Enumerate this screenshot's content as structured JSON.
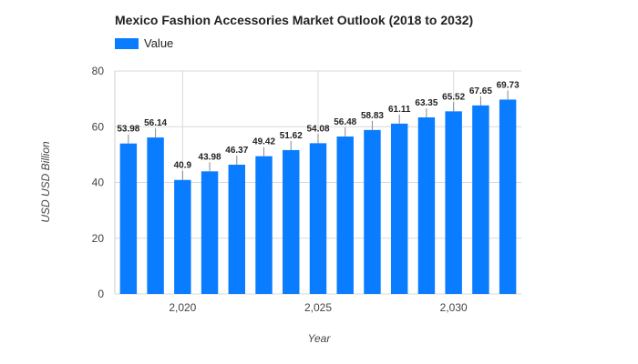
{
  "chart_data": {
    "type": "bar",
    "title": "Mexico Fashion Accessories Market Outlook (2018 to 2032)",
    "xlabel": "Year",
    "ylabel": "USD USD Billion",
    "ylim": [
      0,
      80
    ],
    "yticks": [
      0,
      20,
      40,
      60,
      80
    ],
    "xticks": [
      {
        "value": 2020,
        "label": "2,020"
      },
      {
        "value": 2025,
        "label": "2,025"
      },
      {
        "value": 2030,
        "label": "2,030"
      }
    ],
    "legend": "top-left",
    "grid": true,
    "series": [
      {
        "name": "Value",
        "color": "#0a7cff",
        "x": [
          2018,
          2019,
          2020,
          2021,
          2022,
          2023,
          2024,
          2025,
          2026,
          2027,
          2028,
          2029,
          2030,
          2031,
          2032
        ],
        "values": [
          53.98,
          56.14,
          40.9,
          43.98,
          46.37,
          49.42,
          51.62,
          54.08,
          56.48,
          58.83,
          61.11,
          63.35,
          65.52,
          67.65,
          69.73
        ]
      }
    ]
  }
}
